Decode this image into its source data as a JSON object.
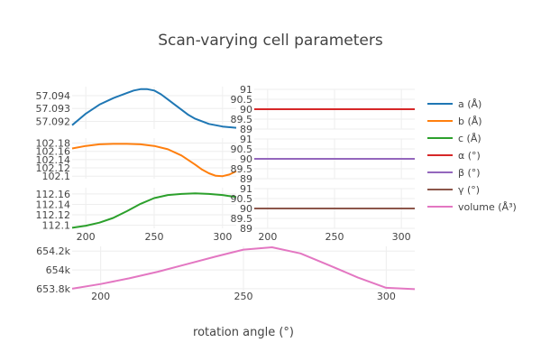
{
  "chart_data": {
    "type": "line",
    "title": "Scan-varying cell parameters",
    "xlabel": "rotation angle (°)",
    "legend_position": "right",
    "colors": {
      "a": "#1f77b4",
      "b": "#ff7f0e",
      "c": "#2ca02c",
      "alpha": "#d62728",
      "beta": "#9467bd",
      "gamma": "#8c564b",
      "volume": "#e377c2"
    },
    "legend": [
      "a (Å)",
      "b (Å)",
      "c (Å)",
      "α (°)",
      "β (°)",
      "γ (°)",
      "volume (Å³)"
    ],
    "panels": [
      {
        "id": "a",
        "xlim": [
          190,
          310
        ],
        "ylim": [
          57.0914,
          57.0947
        ],
        "yticks": [
          57.092,
          57.093,
          57.094
        ],
        "ytick_labels": [
          "57.092",
          "57.093",
          "57.094"
        ],
        "series": [
          {
            "name": "a (Å)",
            "color_key": "a",
            "x": [
              190,
              200,
              210,
              220,
              230,
              235,
              240,
              245,
              250,
              255,
              260,
              265,
              270,
              275,
              280,
              290,
              300,
              310
            ],
            "y": [
              57.0917,
              57.0926,
              57.0933,
              57.0938,
              57.0942,
              57.0944,
              57.0945,
              57.0945,
              57.0944,
              57.0941,
              57.0937,
              57.0933,
              57.0929,
              57.0925,
              57.0922,
              57.0918,
              57.0916,
              57.0915
            ]
          }
        ]
      },
      {
        "id": "b",
        "xlim": [
          190,
          310
        ],
        "ylim": [
          102.094,
          102.192
        ],
        "yticks": [
          102.1,
          102.12,
          102.14,
          102.16,
          102.18
        ],
        "ytick_labels": [
          "102.1",
          "102.12",
          "102.14",
          "102.16",
          "102.18"
        ],
        "series": [
          {
            "name": "b (Å)",
            "color_key": "b",
            "x": [
              190,
              200,
              210,
              220,
              230,
              240,
              250,
              260,
              270,
              280,
              285,
              290,
              295,
              300,
              305,
              310
            ],
            "y": [
              102.167,
              102.173,
              102.177,
              102.178,
              102.178,
              102.177,
              102.173,
              102.165,
              102.15,
              102.128,
              102.116,
              102.107,
              102.101,
              102.1,
              102.104,
              102.112
            ]
          }
        ]
      },
      {
        "id": "c",
        "xlim": [
          190,
          310
        ],
        "ylim": [
          112.094,
          112.172
        ],
        "yticks": [
          112.1,
          112.12,
          112.14,
          112.16
        ],
        "ytick_labels": [
          "112.1",
          "112.12",
          "112.14",
          "112.16"
        ],
        "series": [
          {
            "name": "c (Å)",
            "color_key": "c",
            "x": [
              190,
              200,
              210,
              220,
              230,
              240,
              250,
              260,
              270,
              280,
              290,
              300,
              310
            ],
            "y": [
              112.095,
              112.099,
              112.105,
              112.114,
              112.127,
              112.141,
              112.152,
              112.158,
              112.16,
              112.161,
              112.16,
              112.158,
              112.154
            ]
          }
        ]
      },
      {
        "id": "alpha",
        "xlim": [
          190,
          310
        ],
        "ylim": [
          89,
          91
        ],
        "yticks": [
          89,
          89.5,
          90,
          90.5,
          91
        ],
        "ytick_labels": [
          "89",
          "89.5",
          "90",
          "90.5",
          "91"
        ],
        "series": [
          {
            "name": "α (°)",
            "color_key": "alpha",
            "x": [
              190,
              310
            ],
            "y": [
              90,
              90
            ]
          }
        ]
      },
      {
        "id": "beta",
        "xlim": [
          190,
          310
        ],
        "ylim": [
          89,
          91
        ],
        "yticks": [
          89,
          89.5,
          90,
          90.5,
          91
        ],
        "ytick_labels": [
          "89",
          "89.5",
          "90",
          "90.5",
          "91"
        ],
        "series": [
          {
            "name": "β (°)",
            "color_key": "beta",
            "x": [
              190,
              310
            ],
            "y": [
              90,
              90
            ]
          }
        ]
      },
      {
        "id": "gamma",
        "xlim": [
          190,
          310
        ],
        "ylim": [
          89,
          91
        ],
        "yticks": [
          89,
          89.5,
          90,
          90.5,
          91
        ],
        "ytick_labels": [
          "89",
          "89.5",
          "90",
          "90.5",
          "91"
        ],
        "series": [
          {
            "name": "γ (°)",
            "color_key": "gamma",
            "x": [
              190,
              310
            ],
            "y": [
              90,
              90
            ]
          }
        ]
      },
      {
        "id": "volume",
        "xlim": [
          190,
          310
        ],
        "ylim": [
          653780,
          654250
        ],
        "yticks": [
          653800,
          654000,
          654200
        ],
        "ytick_labels": [
          "653.8k",
          "654k",
          "654.2k"
        ],
        "series": [
          {
            "name": "volume (Å³)",
            "color_key": "volume",
            "x": [
              190,
              200,
              210,
              220,
              230,
              240,
              250,
              260,
              270,
              280,
              290,
              300,
              310
            ],
            "y": [
              653800,
              653850,
              653910,
              653980,
              654060,
              654140,
              654215,
              654240,
              654175,
              654050,
              653920,
              653810,
              653795
            ]
          }
        ]
      }
    ],
    "xaxes": [
      {
        "under": "c",
        "ticks": [
          200,
          250,
          300
        ],
        "tick_labels": [
          "200",
          "250",
          "300"
        ]
      },
      {
        "under": "gamma",
        "ticks": [
          200,
          250,
          300
        ],
        "tick_labels": [
          "200",
          "250",
          "300"
        ]
      },
      {
        "under": "volume",
        "ticks": [
          200,
          250,
          300
        ],
        "tick_labels": [
          "200",
          "250",
          "300"
        ]
      }
    ]
  }
}
